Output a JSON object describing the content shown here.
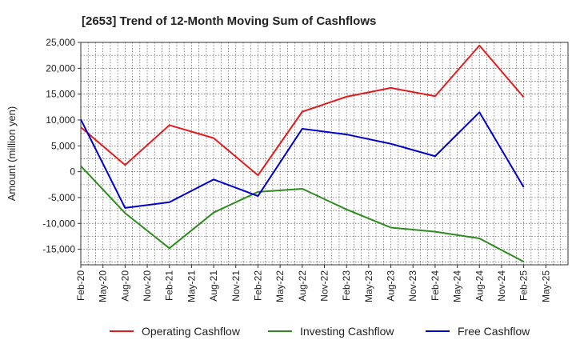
{
  "chart_data": {
    "type": "line",
    "title": "[2653]  Trend of 12-Month Moving Sum of Cashflows",
    "xlabel": "",
    "ylabel": "Amount (million yen)",
    "ylim": [
      -18000,
      25000
    ],
    "yticks": [
      25000,
      20000,
      15000,
      10000,
      5000,
      0,
      -5000,
      -10000,
      -15000
    ],
    "ytick_labels": [
      "25,000",
      "20,000",
      "15,000",
      "10,000",
      "5,000",
      "0",
      "-5,000",
      "-10,000",
      "-15,000"
    ],
    "x_tick_labels": [
      "Feb-20",
      "May-20",
      "Aug-20",
      "Nov-20",
      "Feb-21",
      "May-21",
      "Aug-21",
      "Nov-21",
      "Feb-22",
      "May-22",
      "Aug-22",
      "Nov-22",
      "Feb-23",
      "May-23",
      "Aug-23",
      "Nov-23",
      "Feb-24",
      "May-24",
      "Aug-24",
      "Nov-24",
      "Feb-25",
      "May-25"
    ],
    "grid": true,
    "legend_position": "bottom",
    "x": [
      "Feb-20",
      "Aug-20",
      "Feb-21",
      "Aug-21",
      "Feb-22",
      "Aug-22",
      "Feb-23",
      "Aug-23",
      "Feb-24",
      "Aug-24",
      "Feb-25"
    ],
    "series": [
      {
        "name": "Operating Cashflow",
        "color": "#e31a1c",
        "values": [
          8600,
          1300,
          9000,
          6500,
          -700,
          11600,
          14500,
          16200,
          14600,
          24400,
          14400
        ]
      },
      {
        "name": "Investing Cashflow",
        "color": "#2e8b20",
        "values": [
          1100,
          -8000,
          -14800,
          -7900,
          -3900,
          -3300,
          -7300,
          -10800,
          -11600,
          -12900,
          -17400
        ]
      },
      {
        "name": "Free Cashflow",
        "color": "#0000cc",
        "values": [
          10100,
          -7000,
          -5900,
          -1500,
          -4700,
          8300,
          7200,
          5400,
          3000,
          11500,
          -3000
        ]
      }
    ]
  }
}
